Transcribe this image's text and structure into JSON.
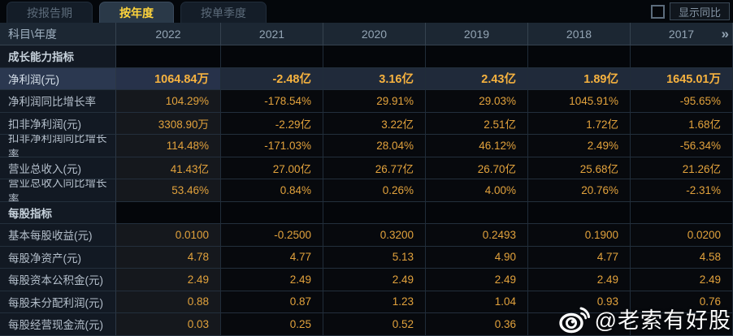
{
  "tabs": [
    {
      "label": "按报告期",
      "active": false
    },
    {
      "label": "按年度",
      "active": true
    },
    {
      "label": "按单季度",
      "active": false
    }
  ],
  "controls": {
    "show_yoy_label": "显示同比",
    "checkbox_checked": false
  },
  "table": {
    "corner_label": "科目\\年度",
    "years": [
      "2022",
      "2021",
      "2020",
      "2019",
      "2018",
      "2017"
    ],
    "more_icon": "»",
    "rows": [
      {
        "type": "section",
        "label": "成长能力指标",
        "highlight": false,
        "values": [
          "",
          "",
          "",
          "",
          "",
          ""
        ]
      },
      {
        "type": "data",
        "label": "净利润(元)",
        "highlight": true,
        "values": [
          "1064.84万",
          "-2.48亿",
          "3.16亿",
          "2.43亿",
          "1.89亿",
          "1645.01万"
        ]
      },
      {
        "type": "data",
        "label": "净利润同比增长率",
        "highlight": false,
        "values": [
          "104.29%",
          "-178.54%",
          "29.91%",
          "29.03%",
          "1045.91%",
          "-95.65%"
        ]
      },
      {
        "type": "data",
        "label": "扣非净利润(元)",
        "highlight": false,
        "values": [
          "3308.90万",
          "-2.29亿",
          "3.22亿",
          "2.51亿",
          "1.72亿",
          "1.68亿"
        ]
      },
      {
        "type": "data",
        "label": "扣非净利润同比增长率",
        "highlight": false,
        "values": [
          "114.48%",
          "-171.03%",
          "28.04%",
          "46.12%",
          "2.49%",
          "-56.34%"
        ]
      },
      {
        "type": "data",
        "label": "营业总收入(元)",
        "highlight": false,
        "values": [
          "41.43亿",
          "27.00亿",
          "26.77亿",
          "26.70亿",
          "25.68亿",
          "21.26亿"
        ]
      },
      {
        "type": "data",
        "label": "营业总收入同比增长率",
        "highlight": false,
        "values": [
          "53.46%",
          "0.84%",
          "0.26%",
          "4.00%",
          "20.76%",
          "-2.31%"
        ]
      },
      {
        "type": "section",
        "label": "每股指标",
        "highlight": false,
        "values": [
          "",
          "",
          "",
          "",
          "",
          ""
        ]
      },
      {
        "type": "data",
        "label": "基本每股收益(元)",
        "highlight": false,
        "values": [
          "0.0100",
          "-0.2500",
          "0.3200",
          "0.2493",
          "0.1900",
          "0.0200"
        ]
      },
      {
        "type": "data",
        "label": "每股净资产(元)",
        "highlight": false,
        "values": [
          "4.78",
          "4.77",
          "5.13",
          "4.90",
          "4.77",
          "4.58"
        ]
      },
      {
        "type": "data",
        "label": "每股资本公积金(元)",
        "highlight": false,
        "values": [
          "2.49",
          "2.49",
          "2.49",
          "2.49",
          "2.49",
          "2.49"
        ]
      },
      {
        "type": "data",
        "label": "每股未分配利润(元)",
        "highlight": false,
        "values": [
          "0.88",
          "0.87",
          "1.23",
          "1.04",
          "0.93",
          "0.76"
        ]
      },
      {
        "type": "data",
        "label": "每股经营现金流(元)",
        "highlight": false,
        "values": [
          "0.03",
          "0.25",
          "0.52",
          "0.36",
          "",
          ""
        ]
      }
    ]
  },
  "watermark": {
    "icon": "weibo-icon",
    "handle": "@老索有好股"
  },
  "colors": {
    "value_gold": "#e2a23c",
    "highlight_gold": "#f6b23f",
    "tab_active_text": "#ffd43c",
    "header_bg": "#1c2733",
    "highlight_row_bg": "#202a3a",
    "page_bg": "#05070b"
  }
}
